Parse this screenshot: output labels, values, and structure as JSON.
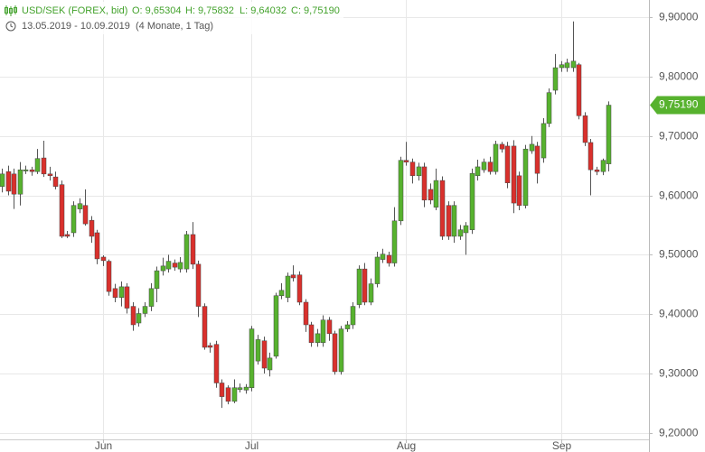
{
  "chart_data": {
    "type": "candlestick",
    "title": "USD/SEK (FOREX, bid)",
    "quote": [
      "O: 9,65304",
      "H: 9,75832",
      "L: 9,64032",
      "C: 9,75190"
    ],
    "subtitle": "13.05.2019 - 10.09.2019",
    "period": "(4 Monate, 1 Tag)",
    "last_label": "9,75190",
    "up_color": "#57b22e",
    "down_color": "#d9302c",
    "ylim": [
      9.189,
      9.929
    ],
    "yticks": [
      {
        "value": 9.9,
        "label": "9,90000"
      },
      {
        "value": 9.8,
        "label": "9,80000"
      },
      {
        "value": 9.7,
        "label": "9,70000"
      },
      {
        "value": 9.6,
        "label": "9,60000"
      },
      {
        "value": 9.5,
        "label": "9,50000"
      },
      {
        "value": 9.4,
        "label": "9,40000"
      },
      {
        "value": 9.3,
        "label": "9,30000"
      },
      {
        "value": 9.2,
        "label": "9,20000"
      }
    ],
    "grid": true,
    "categories": [
      null,
      null,
      null,
      null,
      null,
      null,
      null,
      null,
      null,
      null,
      null,
      null,
      null,
      null,
      null,
      null,
      null,
      "Jun",
      null,
      null,
      null,
      null,
      null,
      null,
      null,
      null,
      null,
      null,
      null,
      null,
      null,
      null,
      null,
      null,
      null,
      null,
      null,
      null,
      null,
      null,
      null,
      null,
      "Jul",
      null,
      null,
      null,
      null,
      null,
      null,
      null,
      null,
      null,
      null,
      null,
      null,
      null,
      null,
      null,
      null,
      null,
      null,
      null,
      null,
      null,
      null,
      null,
      null,
      null,
      "Aug",
      null,
      null,
      null,
      null,
      null,
      null,
      null,
      null,
      null,
      null,
      null,
      null,
      null,
      null,
      null,
      null,
      null,
      null,
      null,
      null,
      null,
      null,
      null,
      null,
      null,
      "Sep",
      null,
      null,
      null,
      null,
      null,
      null,
      null,
      null
    ],
    "open": [
      9.615,
      9.64,
      9.636,
      9.602,
      9.641,
      9.643,
      9.64,
      9.663,
      9.636,
      9.631,
      9.618,
      9.534,
      9.537,
      9.577,
      9.583,
      9.558,
      9.537,
      9.496,
      9.489,
      9.443,
      9.428,
      9.446,
      9.413,
      9.385,
      9.401,
      9.413,
      9.443,
      9.473,
      9.476,
      9.486,
      9.476,
      9.476,
      9.534,
      9.484,
      9.413,
      9.347,
      9.349,
      9.284,
      9.276,
      9.253,
      9.273,
      9.272,
      9.276,
      9.321,
      9.355,
      9.306,
      9.329,
      9.431,
      9.428,
      9.466,
      9.466,
      9.42,
      9.382,
      9.352,
      9.352,
      9.39,
      9.367,
      9.303,
      9.375,
      9.382,
      9.416,
      9.476,
      9.42,
      9.451,
      9.492,
      9.499,
      9.486,
      9.557,
      9.659,
      9.656,
      9.633,
      9.648,
      9.61,
      9.58,
      9.625,
      9.583,
      9.531,
      9.531,
      9.537,
      9.542,
      9.633,
      9.643,
      9.656,
      9.64,
      9.686,
      9.683,
      9.683,
      9.633,
      9.583,
      9.675,
      9.683,
      9.663,
      9.721,
      9.777,
      9.815,
      9.815,
      9.815,
      9.82,
      9.734,
      9.689,
      9.643,
      9.64,
      9.65304
    ],
    "high": [
      9.645,
      9.65,
      9.645,
      9.656,
      9.65,
      9.648,
      9.678,
      9.692,
      9.648,
      9.64,
      9.625,
      9.54,
      9.59,
      9.595,
      9.61,
      9.565,
      9.542,
      9.499,
      9.492,
      9.451,
      9.455,
      9.452,
      9.42,
      9.41,
      9.42,
      9.452,
      9.48,
      9.495,
      9.5,
      9.492,
      9.496,
      9.54,
      9.555,
      9.49,
      9.418,
      9.352,
      9.355,
      9.29,
      9.28,
      9.29,
      9.283,
      9.282,
      9.38,
      9.365,
      9.362,
      9.335,
      9.436,
      9.452,
      9.47,
      9.482,
      9.472,
      9.425,
      9.387,
      9.375,
      9.398,
      9.395,
      9.372,
      9.38,
      9.388,
      9.42,
      9.482,
      9.486,
      9.46,
      9.505,
      9.51,
      9.505,
      9.58,
      9.665,
      9.69,
      9.662,
      9.655,
      9.655,
      9.62,
      9.645,
      9.632,
      9.59,
      9.59,
      9.55,
      9.555,
      9.645,
      9.66,
      9.662,
      9.665,
      9.692,
      9.69,
      9.69,
      9.693,
      9.64,
      9.685,
      9.7,
      9.69,
      9.73,
      9.78,
      9.838,
      9.826,
      9.83,
      9.893,
      9.823,
      9.74,
      9.695,
      9.648,
      9.662,
      9.75832
    ],
    "low": [
      9.605,
      9.6,
      9.577,
      9.583,
      9.636,
      9.633,
      9.636,
      9.631,
      9.625,
      9.61,
      9.528,
      9.528,
      9.53,
      9.57,
      9.549,
      9.52,
      9.484,
      9.481,
      9.431,
      9.42,
      9.413,
      9.401,
      9.372,
      9.379,
      9.395,
      9.405,
      9.42,
      9.465,
      9.47,
      9.473,
      9.47,
      9.47,
      9.476,
      9.395,
      9.34,
      9.335,
      9.276,
      9.242,
      9.248,
      9.25,
      9.268,
      9.266,
      9.27,
      9.315,
      9.3,
      9.295,
      9.325,
      9.425,
      9.42,
      9.455,
      9.415,
      9.37,
      9.345,
      9.345,
      9.345,
      9.355,
      9.298,
      9.298,
      9.37,
      9.375,
      9.41,
      9.415,
      9.415,
      9.445,
      9.486,
      9.48,
      9.48,
      9.55,
      9.65,
      9.62,
      9.625,
      9.58,
      9.585,
      9.575,
      9.525,
      9.525,
      9.52,
      9.525,
      9.5,
      9.535,
      9.625,
      9.638,
      9.635,
      9.635,
      9.672,
      9.612,
      9.57,
      9.575,
      9.578,
      9.67,
      9.62,
      9.655,
      9.715,
      9.77,
      9.808,
      9.808,
      9.808,
      9.728,
      9.683,
      9.6,
      9.634,
      9.634,
      9.64032
    ],
    "close": [
      9.636,
      9.607,
      9.602,
      9.643,
      9.643,
      9.64,
      9.662,
      9.636,
      9.633,
      9.615,
      9.531,
      9.531,
      9.583,
      9.586,
      9.552,
      9.531,
      9.493,
      9.49,
      9.438,
      9.428,
      9.446,
      9.41,
      9.382,
      9.401,
      9.413,
      9.443,
      9.473,
      9.481,
      9.489,
      9.479,
      9.487,
      9.534,
      9.484,
      9.413,
      9.344,
      9.344,
      9.284,
      9.261,
      9.253,
      9.276,
      9.276,
      9.277,
      9.375,
      9.357,
      9.309,
      9.326,
      9.431,
      9.44,
      9.464,
      9.461,
      9.42,
      9.382,
      9.352,
      9.367,
      9.39,
      9.367,
      9.303,
      9.375,
      9.382,
      9.413,
      9.476,
      9.42,
      9.451,
      9.496,
      9.501,
      9.486,
      9.557,
      9.659,
      9.656,
      9.633,
      9.648,
      9.592,
      9.592,
      9.625,
      9.531,
      9.531,
      9.583,
      9.542,
      9.549,
      9.637,
      9.648,
      9.656,
      9.64,
      9.686,
      9.678,
      9.621,
      9.587,
      9.583,
      9.678,
      9.686,
      9.637,
      9.721,
      9.773,
      9.815,
      9.82,
      9.823,
      9.826,
      9.734,
      9.689,
      9.643,
      9.64,
      9.659,
      9.7519
    ]
  }
}
